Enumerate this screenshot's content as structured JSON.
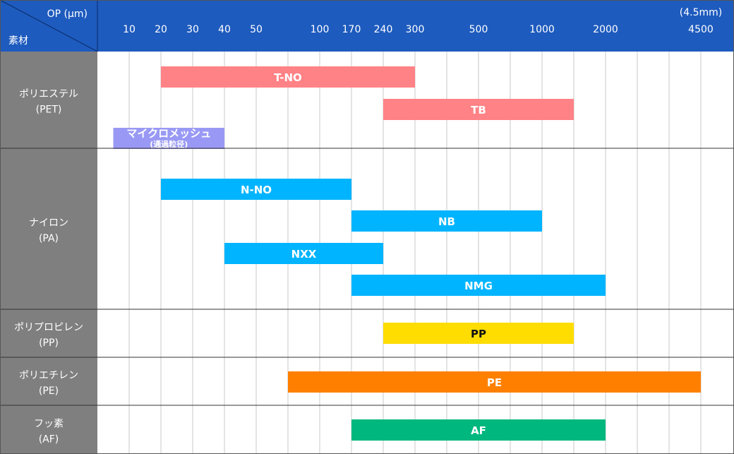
{
  "chart_data": {
    "type": "bar",
    "corner": {
      "op_label": "OP (μm)",
      "material_label": "素材"
    },
    "x_ticks": [
      "10",
      "20",
      "30",
      "40",
      "50",
      "",
      "100",
      "170",
      "240",
      "300",
      "",
      "500",
      "",
      "1000",
      "",
      "2000",
      "",
      "",
      "4500"
    ],
    "x_extra_label": "(4.5mm)",
    "groups": [
      {
        "name_line1": "ポリエステル",
        "name_line2": "(PET)",
        "bars": [
          {
            "label": "T-NO",
            "start": "20",
            "end": "300",
            "color": "#FF8286"
          },
          {
            "label": "TB",
            "start": "240",
            "end": "1500",
            "color": "#FF8286"
          },
          {
            "label": "マイクロメッシュ",
            "sublabel": "(通過粒径)",
            "start": "5",
            "end": "40",
            "color": "#9999F5"
          }
        ]
      },
      {
        "name_line1": "ナイロン",
        "name_line2": "(PA)",
        "bars": [
          {
            "label": "N-NO",
            "start": "20",
            "end": "170",
            "color": "#00B4FF"
          },
          {
            "label": "NB",
            "start": "170",
            "end": "1000",
            "color": "#00B4FF"
          },
          {
            "label": "NXX",
            "start": "40",
            "end": "240",
            "color": "#00B4FF"
          },
          {
            "label": "NMG",
            "start": "170",
            "end": "2000",
            "color": "#00B4FF"
          }
        ]
      },
      {
        "name_line1": "ポリプロピレン",
        "name_line2": "(PP)",
        "bars": [
          {
            "label": "PP",
            "start": "240",
            "end": "1500",
            "color": "#FFDD00"
          }
        ]
      },
      {
        "name_line1": "ポリエチレン",
        "name_line2": "(PE)",
        "bars": [
          {
            "label": "PE",
            "start": "75",
            "end": "4500",
            "color": "#FF8000"
          }
        ]
      },
      {
        "name_line1": "フッ素",
        "name_line2": "(AF)",
        "bars": [
          {
            "label": "AF",
            "start": "170",
            "end": "2000",
            "color": "#00B77D"
          }
        ]
      }
    ],
    "colors": {
      "header": "#1E5BBE",
      "sidebar": "#7F7F7F",
      "grid": "#C8C8C8",
      "separator": "#333333"
    }
  }
}
